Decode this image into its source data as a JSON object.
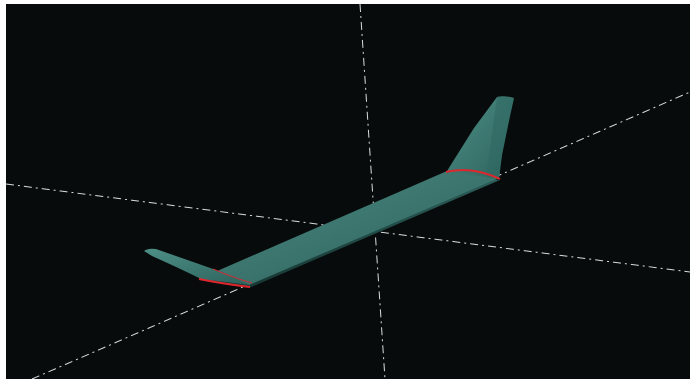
{
  "viewport": {
    "background_color": "#070b0b",
    "frame_color": "#ffffff",
    "axis_color": "#d9dddd",
    "wing_color_light": "#46857d",
    "wing_color_dark": "#1f4b47",
    "section_highlight_color": "#e0262d"
  }
}
